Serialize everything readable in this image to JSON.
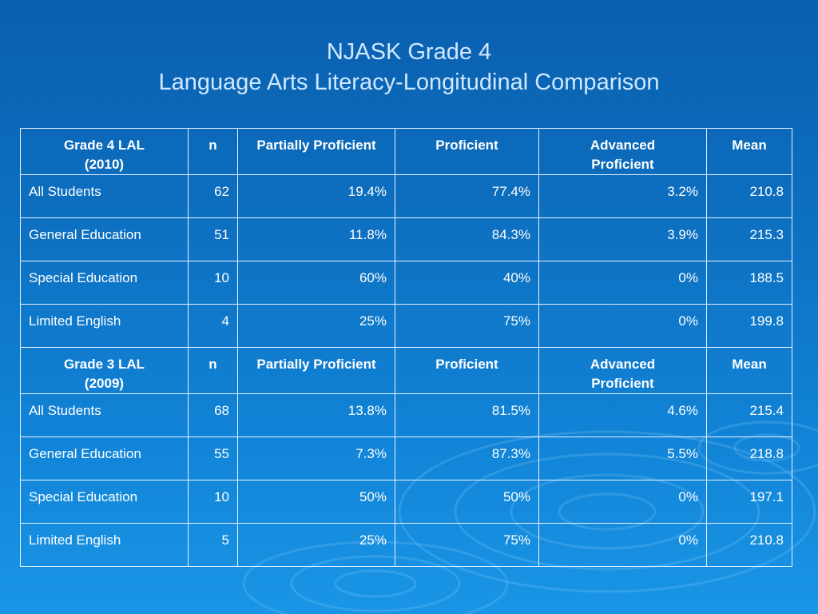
{
  "title": {
    "line1": "NJASK Grade 4",
    "line2": "Language Arts Literacy-Longitudinal Comparison"
  },
  "sections": [
    {
      "header": {
        "group_line1": "Grade 4 LAL",
        "group_line2": "(2010)",
        "n": "n",
        "partially": "Partially Proficient",
        "proficient": "Proficient",
        "advanced": "Advanced Proficient",
        "mean": "Mean"
      },
      "rows": [
        {
          "label": "All Students",
          "n": "62",
          "partially": "19.4%",
          "proficient": "77.4%",
          "advanced": "3.2%",
          "mean": "210.8"
        },
        {
          "label": "General Education",
          "n": "51",
          "partially": "11.8%",
          "proficient": "84.3%",
          "advanced": "3.9%",
          "mean": "215.3"
        },
        {
          "label": "Special Education",
          "n": "10",
          "partially": "60%",
          "proficient": "40%",
          "advanced": "0%",
          "mean": "188.5"
        },
        {
          "label": "Limited English",
          "n": "4",
          "partially": "25%",
          "proficient": "75%",
          "advanced": "0%",
          "mean": "199.8"
        }
      ]
    },
    {
      "header": {
        "group_line1": "Grade 3 LAL",
        "group_line2": "(2009)",
        "n": "n",
        "partially": "Partially Proficient",
        "proficient": "Proficient",
        "advanced": "Advanced Proficient",
        "mean": "Mean"
      },
      "rows": [
        {
          "label": "All Students",
          "n": "68",
          "partially": "13.8%",
          "proficient": "81.5%",
          "advanced": "4.6%",
          "mean": "215.4"
        },
        {
          "label": "General Education",
          "n": "55",
          "partially": "7.3%",
          "proficient": "87.3%",
          "advanced": "5.5%",
          "mean": "218.8"
        },
        {
          "label": "Special Education",
          "n": "10",
          "partially": "50%",
          "proficient": "50%",
          "advanced": "0%",
          "mean": "197.1"
        },
        {
          "label": "Limited English",
          "n": "5",
          "partially": "25%",
          "proficient": "75%",
          "advanced": "0%",
          "mean": "210.8"
        }
      ]
    }
  ]
}
